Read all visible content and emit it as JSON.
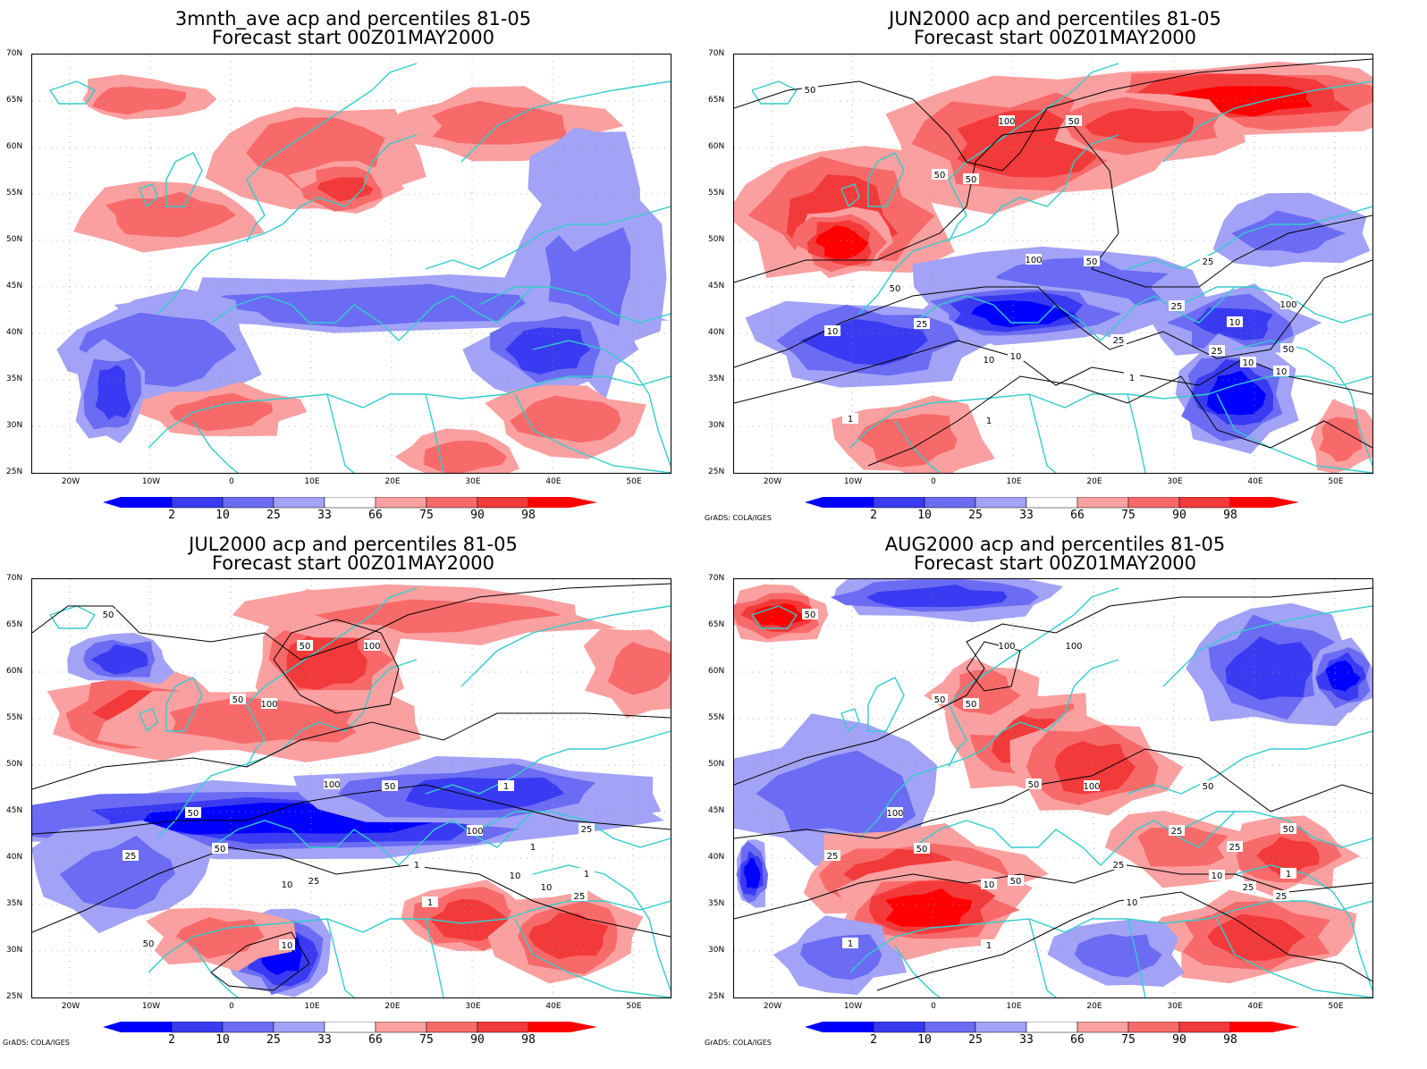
{
  "credit": "GrADS: COLA/IGES",
  "lat_labels": [
    "70N",
    "65N",
    "60N",
    "55N",
    "50N",
    "45N",
    "40N",
    "35N",
    "30N",
    "25N"
  ],
  "lon_labels": [
    "20W",
    "10W",
    "0",
    "10E",
    "20E",
    "30E",
    "40E",
    "50E"
  ],
  "colorbar": {
    "labels": [
      "2",
      "10",
      "25",
      "33",
      "66",
      "75",
      "90",
      "98"
    ],
    "colors": [
      "#0000ff",
      "#3a3af2",
      "#6b6bf3",
      "#a2a2f6",
      "#ffffff",
      "#fba0a0",
      "#f86a6a",
      "#f33a3a",
      "#ff0000"
    ]
  },
  "colors": {
    "coast": "#33cccc",
    "contour": "#000000",
    "grid": "#999999"
  },
  "panels": [
    {
      "id": "p1",
      "title1": "3mnth_ave acp and percentiles 81-05",
      "title2": "Forecast start 00Z01MAY2000",
      "contour_labels": [],
      "show_credit": false
    },
    {
      "id": "p2",
      "title1": "JUN2000 acp and percentiles 81-05",
      "title2": "Forecast start 00Z01MAY2000",
      "contour_labels": [
        "50",
        "100",
        "50",
        "50",
        "50",
        "100",
        "50",
        "50",
        "25",
        "10",
        "25",
        "10",
        "10",
        "25",
        "10",
        "1",
        "1",
        "1",
        "10",
        "100",
        "25",
        "50",
        "25",
        "10"
      ],
      "show_credit": true
    },
    {
      "id": "p3",
      "title1": "JUL2000 acp and percentiles 81-05",
      "title2": "Forecast start 00Z01MAY2000",
      "contour_labels": [
        "50",
        "50",
        "100",
        "50",
        "100",
        "100",
        "50",
        "50",
        "50",
        "25",
        "100",
        "25",
        "10",
        "1",
        "10",
        "1",
        "10",
        "50",
        "25",
        "25",
        "10",
        "1",
        "1",
        "1"
      ],
      "show_credit": true
    },
    {
      "id": "p4",
      "title1": "AUG2000 acp and percentiles 81-05",
      "title2": "Forecast start 00Z01MAY2000",
      "contour_labels": [
        "50",
        "100",
        "100",
        "50",
        "50",
        "50",
        "100",
        "100",
        "50",
        "25",
        "25",
        "50",
        "10",
        "25",
        "25",
        "10",
        "1",
        "1",
        "25",
        "50",
        "10",
        "1",
        "50",
        "25"
      ],
      "show_credit": true
    }
  ]
}
